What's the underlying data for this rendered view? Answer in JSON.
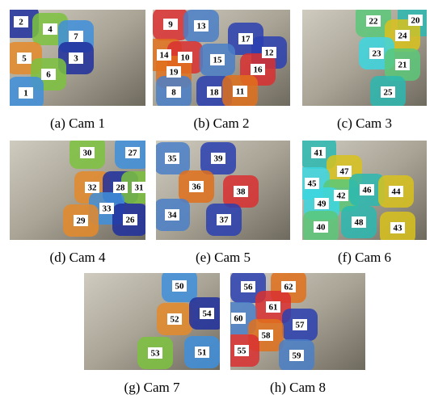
{
  "panels": [
    {
      "caption": "(a)  Cam 1",
      "labels": [
        "2",
        "4",
        "7",
        "5",
        "3",
        "6",
        "1"
      ]
    },
    {
      "caption": "(b)  Cam 2",
      "labels": [
        "9",
        "13",
        "17",
        "14",
        "10",
        "15",
        "12",
        "19",
        "16",
        "8",
        "18",
        "11"
      ]
    },
    {
      "caption": "(c)  Cam 3",
      "labels": [
        "22",
        "20",
        "24",
        "23",
        "21",
        "25"
      ]
    },
    {
      "caption": "(d)  Cam 4",
      "labels": [
        "30",
        "27",
        "32",
        "28",
        "31",
        "33",
        "29",
        "26"
      ]
    },
    {
      "caption": "(e)  Cam 5",
      "labels": [
        "35",
        "39",
        "36",
        "38",
        "34",
        "37"
      ]
    },
    {
      "caption": "(f)  Cam 6",
      "labels": [
        "41",
        "47",
        "45",
        "42",
        "46",
        "44",
        "49",
        "40",
        "48",
        "43"
      ]
    },
    {
      "caption": "(g)  Cam 7",
      "labels": [
        "50",
        "52",
        "54",
        "53",
        "51"
      ]
    },
    {
      "caption": "(h)  Cam 8",
      "labels": [
        "56",
        "62",
        "61",
        "60",
        "57",
        "58",
        "55",
        "59"
      ]
    }
  ]
}
